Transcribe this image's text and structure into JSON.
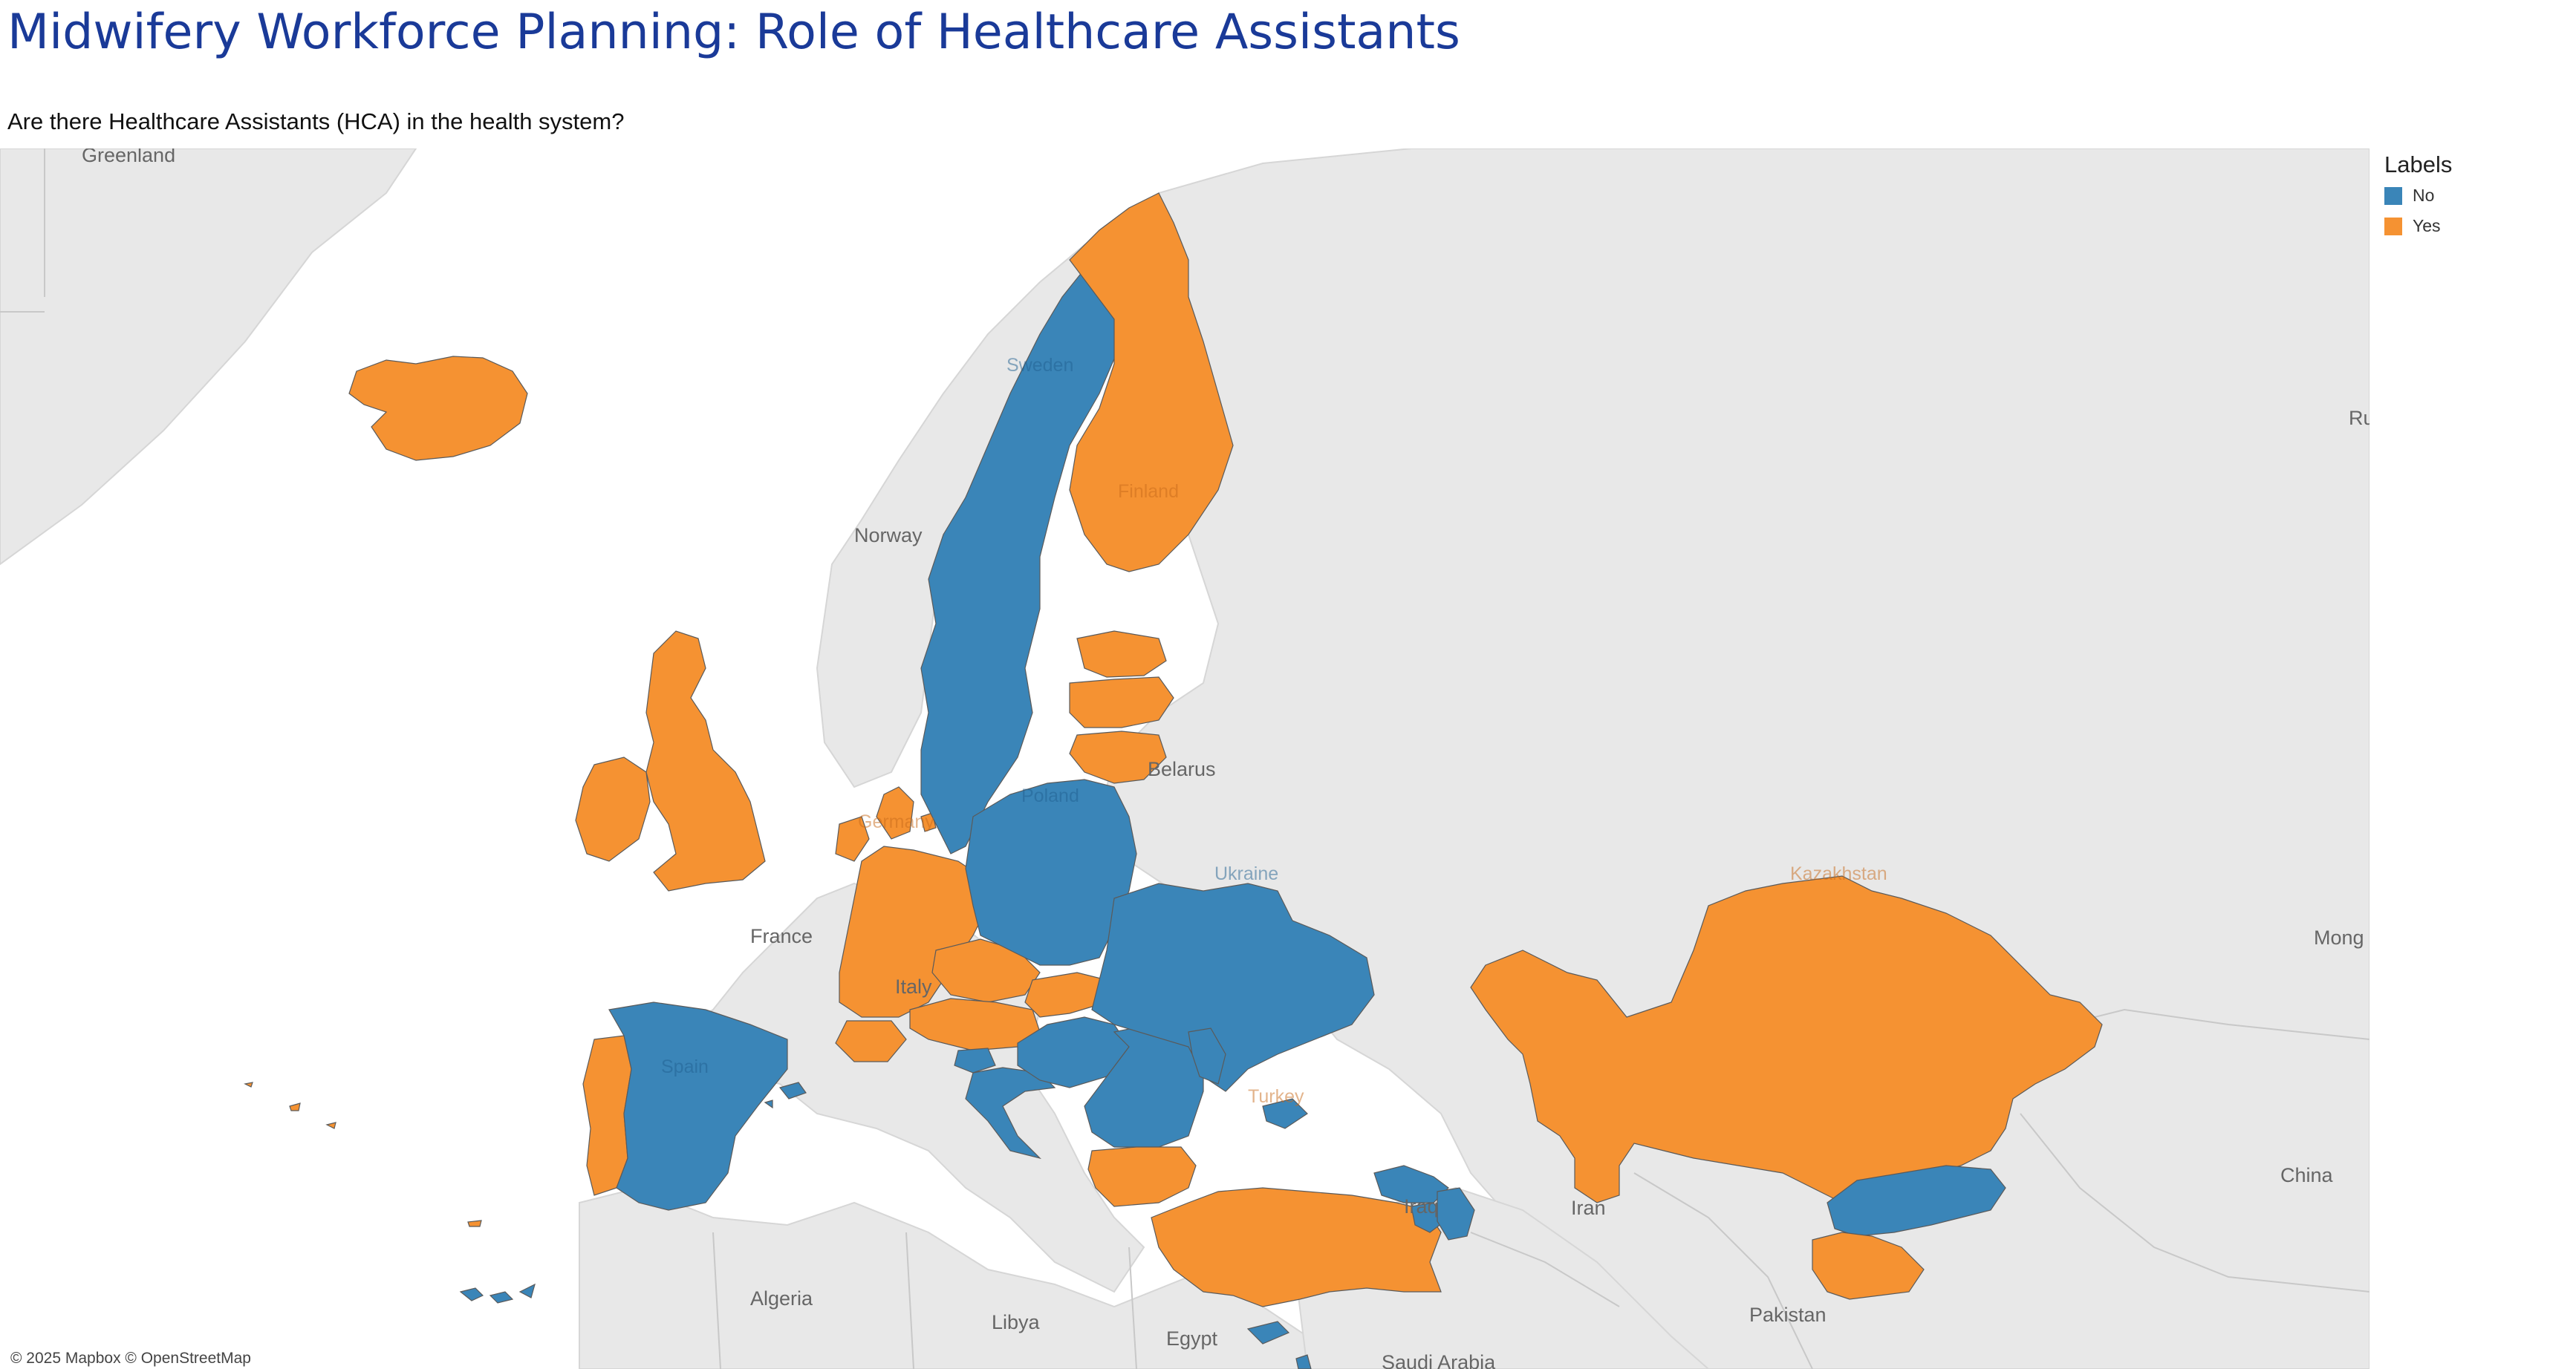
{
  "title": "Midwifery Workforce Planning: Role of Healthcare Assistants",
  "subtitle": "Are there Healthcare Assistants (HCA) in the health system?",
  "legend": {
    "title": "Labels",
    "items": [
      {
        "label": "No",
        "color": "#3a85b8"
      },
      {
        "label": "Yes",
        "color": "#f59232"
      }
    ]
  },
  "attribution": "© 2025 Mapbox © OpenStreetMap",
  "basemap_labels": {
    "greenland": "Greenland",
    "norway": "Norway",
    "belarus": "Belarus",
    "france": "France",
    "italy": "Italy",
    "algeria": "Algeria",
    "libya": "Libya",
    "egypt": "Egypt",
    "iraq": "Iraq",
    "iran": "Iran",
    "pakistan": "Pakistan",
    "china": "China",
    "mongolia": "Mong",
    "russia": "Ru",
    "saudi": "Saudi Arabia"
  },
  "map_data": {
    "colors": {
      "no": "#3a85b8",
      "yes": "#f59232"
    },
    "countries": [
      {
        "key": "iceland",
        "name": "",
        "value": "Yes"
      },
      {
        "key": "ireland",
        "name": "",
        "value": "Yes"
      },
      {
        "key": "uk",
        "name": "",
        "value": "Yes"
      },
      {
        "key": "portugal",
        "name": "",
        "value": "Yes"
      },
      {
        "key": "spain",
        "name": "Spain",
        "value": "No"
      },
      {
        "key": "canaries",
        "name": "",
        "value": "No"
      },
      {
        "key": "madeira",
        "name": "",
        "value": "Yes"
      },
      {
        "key": "azores",
        "name": "",
        "value": "Yes"
      },
      {
        "key": "balearic",
        "name": "",
        "value": "No"
      },
      {
        "key": "netherlands",
        "name": "",
        "value": "Yes"
      },
      {
        "key": "germany",
        "name": "Germany",
        "value": "Yes"
      },
      {
        "key": "denmark",
        "name": "",
        "value": "Yes"
      },
      {
        "key": "switzerland",
        "name": "",
        "value": "Yes"
      },
      {
        "key": "czechia",
        "name": "",
        "value": "Yes"
      },
      {
        "key": "austria",
        "name": "",
        "value": "Yes"
      },
      {
        "key": "slovakia",
        "name": "",
        "value": "Yes"
      },
      {
        "key": "slovenia",
        "name": "",
        "value": "No"
      },
      {
        "key": "croatia",
        "name": "",
        "value": "No"
      },
      {
        "key": "hungary",
        "name": "",
        "value": "No"
      },
      {
        "key": "romania",
        "name": "",
        "value": "No"
      },
      {
        "key": "bulgaria",
        "name": "",
        "value": "Yes"
      },
      {
        "key": "turkey",
        "name": "Turkey",
        "value": "Yes"
      },
      {
        "key": "cyprus",
        "name": "",
        "value": "No"
      },
      {
        "key": "israel",
        "name": "",
        "value": "No"
      },
      {
        "key": "georgia",
        "name": "",
        "value": "No"
      },
      {
        "key": "armenia",
        "name": "",
        "value": "No"
      },
      {
        "key": "azerbaijan",
        "name": "",
        "value": "No"
      },
      {
        "key": "sweden",
        "name": "Sweden",
        "value": "No"
      },
      {
        "key": "finland",
        "name": "Finland",
        "value": "Yes"
      },
      {
        "key": "estonia",
        "name": "",
        "value": "Yes"
      },
      {
        "key": "latvia",
        "name": "",
        "value": "Yes"
      },
      {
        "key": "lithuania",
        "name": "",
        "value": "Yes"
      },
      {
        "key": "gotland",
        "name": "",
        "value": "No"
      },
      {
        "key": "poland",
        "name": "Poland",
        "value": "No"
      },
      {
        "key": "ukraine",
        "name": "Ukraine",
        "value": "No"
      },
      {
        "key": "moldova",
        "name": "",
        "value": "No"
      },
      {
        "key": "kazakhstan",
        "name": "Kazakhstan",
        "value": "Yes"
      },
      {
        "key": "kyrgyzstan",
        "name": "",
        "value": "No"
      },
      {
        "key": "tajikistan",
        "name": "",
        "value": "Yes"
      }
    ]
  }
}
